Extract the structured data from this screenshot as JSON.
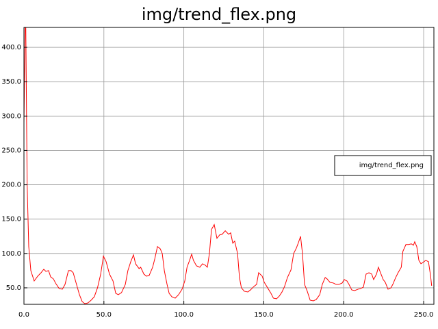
{
  "chart_data": {
    "type": "line",
    "title": "img/trend_flex.png",
    "x": [
      0,
      1,
      2,
      3,
      4.3,
      6.4,
      8.6,
      10.7,
      12.4,
      13.7,
      15.4,
      16.7,
      18.4,
      20,
      22,
      24,
      25.7,
      27.8,
      29.5,
      30.8,
      32.5,
      34.7,
      36.4,
      38,
      40,
      42,
      44,
      46,
      48,
      49.7,
      51.4,
      53.5,
      55.7,
      57.4,
      59,
      61,
      63.4,
      65,
      66.8,
      68.5,
      69.8,
      72,
      73,
      75,
      76.6,
      78.3,
      80.5,
      81.8,
      83.5,
      85.2,
      86.5,
      87.8,
      89.5,
      90.8,
      92.5,
      94.6,
      96.7,
      98.9,
      100.6,
      102,
      103.6,
      104.9,
      106,
      107.9,
      110,
      111.7,
      113.4,
      114.7,
      116,
      117.3,
      119,
      120.7,
      122.4,
      124,
      125.9,
      128,
      129.3,
      130.6,
      131.8,
      133.6,
      134.8,
      136,
      137.8,
      140,
      141.7,
      143.8,
      145.5,
      146.8,
      149,
      150.3,
      152.4,
      154.5,
      156,
      158,
      159.7,
      161.4,
      163,
      164.8,
      167,
      168.7,
      170.4,
      171.7,
      173,
      174.2,
      175.5,
      177.2,
      179,
      181,
      182.8,
      185,
      186.6,
      188.4,
      189.6,
      191.4,
      193.5,
      195.2,
      197,
      199,
      200.3,
      202,
      203.3,
      205,
      206.8,
      209,
      210.6,
      212.3,
      214,
      215.8,
      217.5,
      218.7,
      220.5,
      221.7,
      223,
      224.7,
      226,
      227.7,
      229.5,
      230.7,
      232.5,
      234,
      236,
      237,
      238.9,
      240.6,
      242.3,
      243.6,
      244.4,
      245.7,
      247,
      248.3,
      249.6,
      251.3,
      253,
      254.3,
      255
    ],
    "series": [
      {
        "name": "img/trend_flex.png",
        "color": "#ff0000",
        "values": [
          290,
          470,
          200,
          110,
          75,
          60,
          67,
          72,
          77,
          74,
          75,
          66,
          63,
          56,
          49,
          48,
          55,
          75,
          75,
          72,
          58,
          40,
          30,
          27,
          28,
          32,
          37,
          50,
          70,
          96,
          88,
          70,
          60,
          42,
          40,
          43,
          55,
          75,
          88,
          98,
          85,
          78,
          80,
          70,
          67,
          68,
          80,
          92,
          110,
          107,
          100,
          75,
          55,
          42,
          37,
          35,
          40,
          48,
          60,
          80,
          90,
          99,
          90,
          82,
          80,
          85,
          83,
          80,
          100,
          135,
          142,
          122,
          127,
          128,
          133,
          128,
          130,
          115,
          118,
          100,
          65,
          50,
          45,
          44,
          47,
          52,
          55,
          72,
          67,
          58,
          50,
          42,
          35,
          34,
          38,
          44,
          52,
          65,
          76,
          100,
          108,
          116,
          125,
          100,
          55,
          45,
          32,
          31,
          33,
          40,
          55,
          65,
          63,
          58,
          57,
          55,
          55,
          57,
          62,
          60,
          55,
          47,
          46,
          48,
          49,
          51,
          70,
          72,
          70,
          62,
          70,
          80,
          72,
          62,
          58,
          48,
          50,
          55,
          65,
          72,
          80,
          103,
          113,
          113,
          114,
          112,
          117,
          110,
          90,
          85,
          87,
          90,
          88,
          68,
          53
        ]
      }
    ],
    "xlim": [
      0,
      256.4
    ],
    "ylim": [
      26,
      429
    ],
    "xticks": [
      {
        "value": 0,
        "label": "0.0"
      },
      {
        "value": 50,
        "label": "50.0"
      },
      {
        "value": 100,
        "label": "100.0"
      },
      {
        "value": 150,
        "label": "150.0"
      },
      {
        "value": 200,
        "label": "200.0"
      },
      {
        "value": 250,
        "label": "250.0"
      }
    ],
    "yticks": [
      {
        "value": 50,
        "label": "50.0"
      },
      {
        "value": 100,
        "label": "100.0"
      },
      {
        "value": 150,
        "label": "150.0"
      },
      {
        "value": 200,
        "label": "200.0"
      },
      {
        "value": 250,
        "label": "250.0"
      },
      {
        "value": 300,
        "label": "300.0"
      },
      {
        "value": 350,
        "label": "350.0"
      },
      {
        "value": 400,
        "label": "400.0"
      }
    ],
    "grid": true,
    "legend": "right"
  }
}
